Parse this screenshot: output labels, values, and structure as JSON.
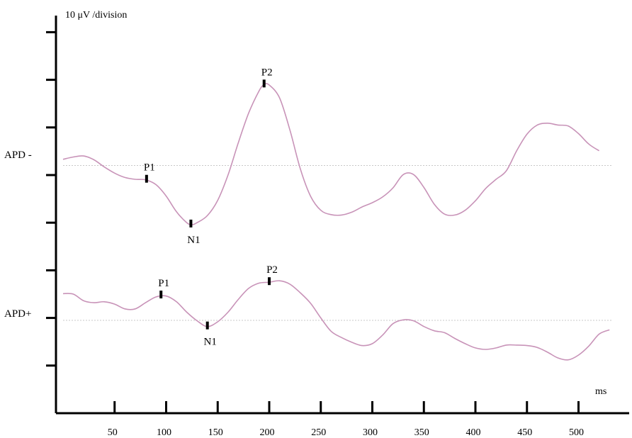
{
  "chart_data": {
    "type": "line",
    "title": "",
    "scale_label": "10 μV /division",
    "xlabel": "ms",
    "ylabel": "",
    "x_ticks": [
      50,
      100,
      150,
      200,
      250,
      300,
      350,
      400,
      450,
      500
    ],
    "xlim": [
      0,
      530
    ],
    "y_unit": "μV",
    "y_division_uv": 10,
    "colors": {
      "trace": "#c893b8",
      "axis": "#000000",
      "baseline": "#c8c8c8"
    },
    "series": [
      {
        "name": "APD -",
        "offset_divisions": 5.2,
        "points": [
          [
            0,
            1.3
          ],
          [
            10,
            1.8
          ],
          [
            20,
            2.0
          ],
          [
            30,
            1.2
          ],
          [
            40,
            -0.3
          ],
          [
            50,
            -1.6
          ],
          [
            60,
            -2.5
          ],
          [
            70,
            -2.9
          ],
          [
            80,
            -3.0
          ],
          [
            90,
            -4.0
          ],
          [
            100,
            -6.4
          ],
          [
            110,
            -9.7
          ],
          [
            120,
            -12.0
          ],
          [
            125,
            -12.4
          ],
          [
            130,
            -12.0
          ],
          [
            140,
            -10.5
          ],
          [
            150,
            -7.3
          ],
          [
            160,
            -2.0
          ],
          [
            170,
            4.8
          ],
          [
            180,
            11.0
          ],
          [
            190,
            15.6
          ],
          [
            195,
            17.0
          ],
          [
            200,
            16.9
          ],
          [
            210,
            14.2
          ],
          [
            220,
            7.5
          ],
          [
            230,
            -0.6
          ],
          [
            240,
            -6.4
          ],
          [
            250,
            -9.4
          ],
          [
            260,
            -10.3
          ],
          [
            270,
            -10.4
          ],
          [
            280,
            -9.8
          ],
          [
            290,
            -8.7
          ],
          [
            300,
            -7.8
          ],
          [
            310,
            -6.6
          ],
          [
            320,
            -4.7
          ],
          [
            330,
            -1.9
          ],
          [
            340,
            -1.9
          ],
          [
            350,
            -4.6
          ],
          [
            360,
            -8.1
          ],
          [
            370,
            -10.2
          ],
          [
            380,
            -10.4
          ],
          [
            390,
            -9.4
          ],
          [
            400,
            -7.4
          ],
          [
            410,
            -4.8
          ],
          [
            420,
            -2.9
          ],
          [
            430,
            -1.1
          ],
          [
            440,
            3.1
          ],
          [
            450,
            6.6
          ],
          [
            460,
            8.5
          ],
          [
            470,
            8.9
          ],
          [
            480,
            8.5
          ],
          [
            490,
            8.3
          ],
          [
            500,
            6.7
          ],
          [
            510,
            4.5
          ],
          [
            520,
            3.1
          ]
        ],
        "peaks": [
          {
            "label": "P1",
            "x": 81,
            "y": -3.0
          },
          {
            "label": "N1",
            "x": 124,
            "y": -12.4
          },
          {
            "label": "P2",
            "x": 195,
            "y": 17.0
          }
        ]
      },
      {
        "name": "APD+",
        "offset_divisions": 1.95,
        "points": [
          [
            0,
            5.6
          ],
          [
            10,
            5.5
          ],
          [
            20,
            4.1
          ],
          [
            30,
            3.7
          ],
          [
            40,
            3.9
          ],
          [
            50,
            3.4
          ],
          [
            60,
            2.4
          ],
          [
            70,
            2.4
          ],
          [
            80,
            3.7
          ],
          [
            90,
            4.9
          ],
          [
            100,
            5.1
          ],
          [
            110,
            3.9
          ],
          [
            120,
            1.7
          ],
          [
            130,
            -0.1
          ],
          [
            140,
            -1.3
          ],
          [
            150,
            -0.3
          ],
          [
            160,
            1.7
          ],
          [
            170,
            4.4
          ],
          [
            180,
            6.7
          ],
          [
            190,
            7.8
          ],
          [
            200,
            8.0
          ],
          [
            210,
            8.3
          ],
          [
            220,
            7.6
          ],
          [
            230,
            5.8
          ],
          [
            240,
            3.6
          ],
          [
            250,
            0.5
          ],
          [
            260,
            -2.3
          ],
          [
            270,
            -3.6
          ],
          [
            280,
            -4.6
          ],
          [
            290,
            -5.3
          ],
          [
            300,
            -4.9
          ],
          [
            310,
            -3.1
          ],
          [
            320,
            -0.7
          ],
          [
            330,
            0.1
          ],
          [
            340,
            -0.1
          ],
          [
            350,
            -1.3
          ],
          [
            360,
            -2.2
          ],
          [
            370,
            -2.6
          ],
          [
            380,
            -3.8
          ],
          [
            390,
            -4.9
          ],
          [
            400,
            -5.8
          ],
          [
            410,
            -6.1
          ],
          [
            420,
            -5.8
          ],
          [
            430,
            -5.2
          ],
          [
            440,
            -5.2
          ],
          [
            450,
            -5.3
          ],
          [
            460,
            -5.7
          ],
          [
            470,
            -6.7
          ],
          [
            480,
            -7.9
          ],
          [
            490,
            -8.3
          ],
          [
            500,
            -7.3
          ],
          [
            510,
            -5.4
          ],
          [
            520,
            -2.9
          ],
          [
            530,
            -2.0
          ]
        ],
        "peaks": [
          {
            "label": "P1",
            "x": 95,
            "y": 5.2
          },
          {
            "label": "N1",
            "x": 140,
            "y": -1.3
          },
          {
            "label": "P2",
            "x": 200,
            "y": 8.0
          }
        ]
      }
    ]
  }
}
